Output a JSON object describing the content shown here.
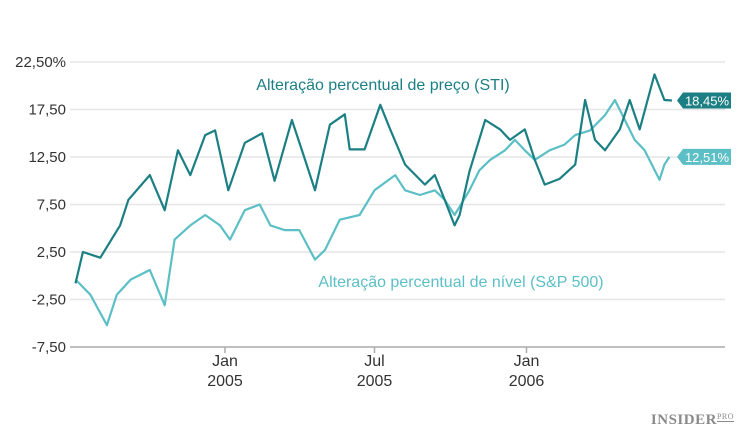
{
  "chart_data": {
    "type": "line",
    "title": "",
    "xlabel": "",
    "ylabel": "",
    "ylim": [
      -7.5,
      22.5
    ],
    "yticks": [
      "22,50%",
      "17,50",
      "12,50",
      "7,50",
      "2,50",
      "-2,50",
      "-7,50"
    ],
    "ytick_values": [
      22.5,
      17.5,
      12.5,
      7.5,
      2.5,
      -2.5,
      -7.5
    ],
    "xlim": [
      "2004-06-28",
      "2006-09-10"
    ],
    "xticks": [
      {
        "date": "2005-01-01",
        "line1": "Jan",
        "line2": "2005"
      },
      {
        "date": "2005-07-01",
        "line1": "Jul",
        "line2": "2005"
      },
      {
        "date": "2006-01-01",
        "line1": "Jan",
        "line2": "2006"
      }
    ],
    "grid": true,
    "series": [
      {
        "name": "Alteração percentual de preço (STI)",
        "color": "#1b7f84",
        "end_label": "18,45%",
        "points": [
          [
            "2004-07-04",
            -0.8
          ],
          [
            "2004-07-13",
            2.5
          ],
          [
            "2004-08-03",
            1.9
          ],
          [
            "2004-08-27",
            5.3
          ],
          [
            "2004-09-06",
            8.0
          ],
          [
            "2004-10-02",
            10.6
          ],
          [
            "2004-10-20",
            6.9
          ],
          [
            "2004-11-05",
            13.2
          ],
          [
            "2004-11-20",
            10.6
          ],
          [
            "2004-12-08",
            14.8
          ],
          [
            "2004-12-20",
            15.3
          ],
          [
            "2005-01-05",
            9.0
          ],
          [
            "2005-01-25",
            14.0
          ],
          [
            "2005-02-15",
            15.0
          ],
          [
            "2005-03-02",
            10.0
          ],
          [
            "2005-03-23",
            16.4
          ],
          [
            "2005-04-08",
            12.2
          ],
          [
            "2005-04-20",
            9.0
          ],
          [
            "2005-05-08",
            15.9
          ],
          [
            "2005-05-26",
            17.0
          ],
          [
            "2005-06-01",
            13.3
          ],
          [
            "2005-06-19",
            13.3
          ],
          [
            "2005-07-08",
            18.0
          ],
          [
            "2005-07-20",
            15.4
          ],
          [
            "2005-08-07",
            11.7
          ],
          [
            "2005-08-31",
            9.6
          ],
          [
            "2005-09-12",
            10.6
          ],
          [
            "2005-09-24",
            8.0
          ],
          [
            "2005-10-06",
            5.3
          ],
          [
            "2005-10-12",
            6.4
          ],
          [
            "2005-10-24",
            11.0
          ],
          [
            "2005-11-12",
            16.4
          ],
          [
            "2005-11-30",
            15.4
          ],
          [
            "2005-12-12",
            14.3
          ],
          [
            "2005-12-30",
            15.4
          ],
          [
            "2006-01-11",
            12.2
          ],
          [
            "2006-01-23",
            9.6
          ],
          [
            "2006-02-10",
            10.2
          ],
          [
            "2006-03-01",
            11.7
          ],
          [
            "2006-03-13",
            18.5
          ],
          [
            "2006-03-25",
            14.3
          ],
          [
            "2006-04-06",
            13.2
          ],
          [
            "2006-04-24",
            15.4
          ],
          [
            "2006-05-06",
            18.5
          ],
          [
            "2006-05-18",
            15.4
          ],
          [
            "2006-06-05",
            21.2
          ],
          [
            "2006-06-17",
            18.5
          ],
          [
            "2006-06-26",
            18.45
          ]
        ]
      },
      {
        "name": "Alteração percentual de nível (S&P 500)",
        "color": "#5cbfc6",
        "end_label": "12,51%",
        "points": [
          [
            "2004-07-04",
            -0.4
          ],
          [
            "2004-07-22",
            -2.0
          ],
          [
            "2004-08-11",
            -5.2
          ],
          [
            "2004-08-23",
            -2.0
          ],
          [
            "2004-09-09",
            -0.4
          ],
          [
            "2004-10-02",
            0.6
          ],
          [
            "2004-10-20",
            -3.1
          ],
          [
            "2004-11-01",
            3.8
          ],
          [
            "2004-11-20",
            5.3
          ],
          [
            "2004-12-08",
            6.4
          ],
          [
            "2004-12-26",
            5.3
          ],
          [
            "2005-01-07",
            3.8
          ],
          [
            "2005-01-25",
            6.9
          ],
          [
            "2005-02-12",
            7.5
          ],
          [
            "2005-02-25",
            5.3
          ],
          [
            "2005-03-14",
            4.8
          ],
          [
            "2005-04-01",
            4.8
          ],
          [
            "2005-04-20",
            1.7
          ],
          [
            "2005-05-02",
            2.7
          ],
          [
            "2005-05-20",
            5.9
          ],
          [
            "2005-06-13",
            6.4
          ],
          [
            "2005-07-01",
            9.0
          ],
          [
            "2005-07-26",
            10.6
          ],
          [
            "2005-08-07",
            9.0
          ],
          [
            "2005-08-25",
            8.5
          ],
          [
            "2005-09-12",
            9.0
          ],
          [
            "2005-09-24",
            8.0
          ],
          [
            "2005-10-06",
            6.4
          ],
          [
            "2005-10-24",
            9.0
          ],
          [
            "2005-11-05",
            11.1
          ],
          [
            "2005-11-18",
            12.2
          ],
          [
            "2005-12-06",
            13.2
          ],
          [
            "2005-12-18",
            14.3
          ],
          [
            "2005-12-30",
            13.2
          ],
          [
            "2006-01-11",
            12.2
          ],
          [
            "2006-01-29",
            13.2
          ],
          [
            "2006-02-16",
            13.8
          ],
          [
            "2006-03-01",
            14.8
          ],
          [
            "2006-03-19",
            15.3
          ],
          [
            "2006-04-06",
            16.9
          ],
          [
            "2006-04-18",
            18.5
          ],
          [
            "2006-04-30",
            16.4
          ],
          [
            "2006-05-12",
            14.3
          ],
          [
            "2006-05-24",
            13.2
          ],
          [
            "2006-06-11",
            10.1
          ],
          [
            "2006-06-17",
            11.7
          ],
          [
            "2006-06-23",
            12.51
          ]
        ]
      }
    ]
  },
  "logo": {
    "main": "INSIDER",
    "sub": "PRO"
  }
}
